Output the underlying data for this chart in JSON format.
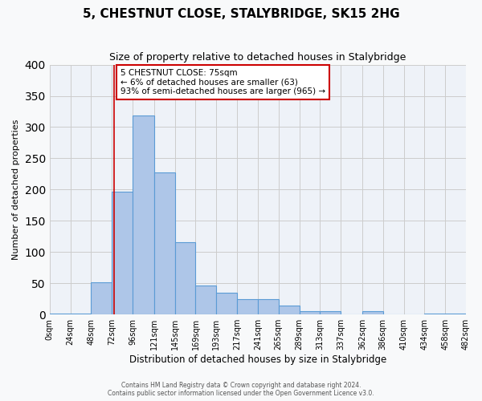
{
  "title": "5, CHESTNUT CLOSE, STALYBRIDGE, SK15 2HG",
  "subtitle": "Size of property relative to detached houses in Stalybridge",
  "xlabel": "Distribution of detached houses by size in Stalybridge",
  "ylabel": "Number of detached properties",
  "bar_color": "#aec6e8",
  "bar_edge_color": "#5b9bd5",
  "bg_color": "#eef2f8",
  "grid_color": "#cccccc",
  "bin_edges": [
    0,
    24,
    48,
    72,
    96,
    121,
    145,
    169,
    193,
    217,
    241,
    265,
    289,
    313,
    337,
    362,
    386,
    410,
    434,
    458,
    482
  ],
  "bin_labels": [
    "0sqm",
    "24sqm",
    "48sqm",
    "72sqm",
    "96sqm",
    "121sqm",
    "145sqm",
    "169sqm",
    "193sqm",
    "217sqm",
    "241sqm",
    "265sqm",
    "289sqm",
    "313sqm",
    "337sqm",
    "362sqm",
    "386sqm",
    "410sqm",
    "434sqm",
    "458sqm",
    "482sqm"
  ],
  "counts": [
    2,
    2,
    51,
    197,
    319,
    228,
    116,
    46,
    35,
    25,
    25,
    15,
    6,
    5,
    0,
    5,
    0,
    0,
    2,
    2
  ],
  "ylim": [
    0,
    400
  ],
  "yticks": [
    0,
    50,
    100,
    150,
    200,
    250,
    300,
    350,
    400
  ],
  "property_size": 75,
  "annotation_title": "5 CHESTNUT CLOSE: 75sqm",
  "annotation_line1": "← 6% of detached houses are smaller (63)",
  "annotation_line2": "93% of semi-detached houses are larger (965) →",
  "vline_color": "#cc0000",
  "annotation_box_color": "#ffffff",
  "annotation_box_edge": "#cc0000",
  "footer1": "Contains HM Land Registry data © Crown copyright and database right 2024.",
  "footer2": "Contains public sector information licensed under the Open Government Licence v3.0."
}
